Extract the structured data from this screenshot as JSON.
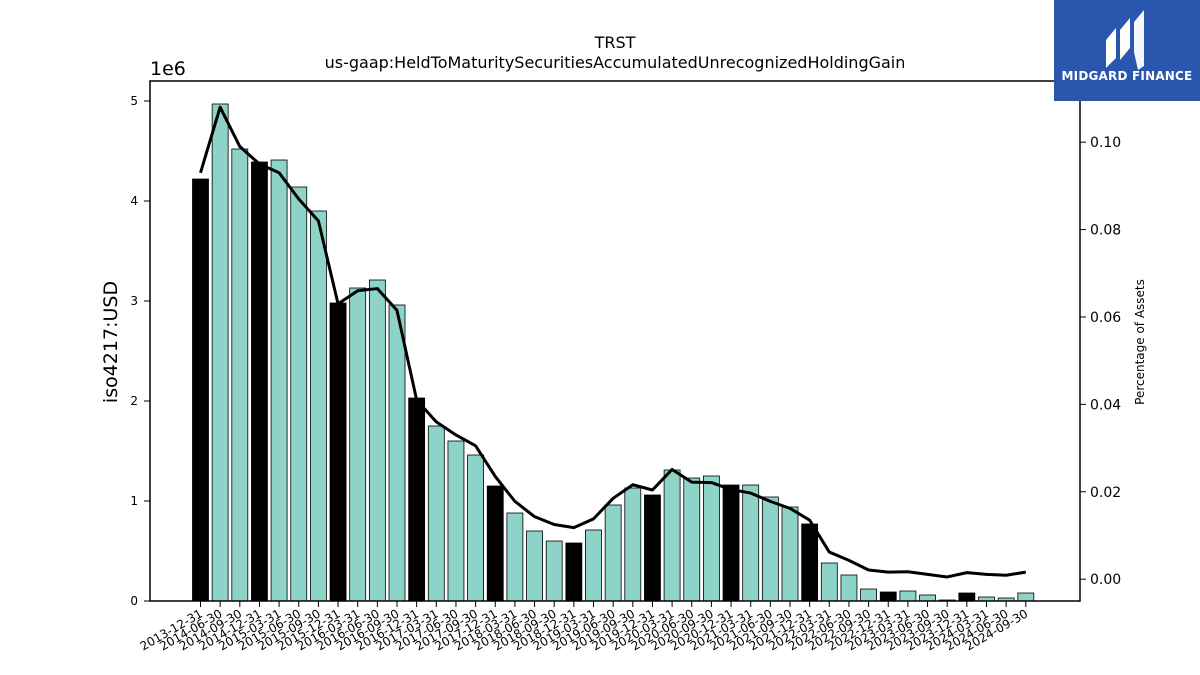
{
  "chart_data": {
    "type": "bar",
    "title": "TRST",
    "subtitle": "us-gaap:HeldToMaturitySecuritiesAccumulatedUnrecognizedHoldingGain",
    "ylabel": "iso4217:USD",
    "y_scale_label": "1e6",
    "y2label": "Percentage of Assets",
    "ylim": [
      0,
      5.2
    ],
    "y2lim": [
      -0.005,
      0.114
    ],
    "yticks": [
      "0",
      "1",
      "2",
      "3",
      "4",
      "5"
    ],
    "y2ticks": [
      "0.00",
      "0.02",
      "0.04",
      "0.06",
      "0.08",
      "0.10"
    ],
    "categories": [
      "2013-12-31",
      "2014-06-30",
      "2014-09-30",
      "2014-12-31",
      "2015-03-31",
      "2015-06-30",
      "2015-09-30",
      "2015-12-31",
      "2016-03-31",
      "2016-06-30",
      "2016-09-30",
      "2016-12-31",
      "2017-03-31",
      "2017-06-30",
      "2017-09-30",
      "2017-12-31",
      "2018-03-31",
      "2018-06-30",
      "2018-09-30",
      "2018-12-31",
      "2019-03-31",
      "2019-06-30",
      "2019-09-30",
      "2019-12-31",
      "2020-03-31",
      "2020-06-30",
      "2020-09-30",
      "2020-12-31",
      "2021-03-31",
      "2021-06-30",
      "2021-09-30",
      "2021-12-31",
      "2022-03-31",
      "2022-06-30",
      "2022-09-30",
      "2022-12-31",
      "2023-03-31",
      "2023-06-30",
      "2023-09-30",
      "2023-12-31",
      "2024-03-31",
      "2024-06-30",
      "2024-09-30"
    ],
    "series": [
      {
        "type": "bar",
        "values": [
          4.22,
          4.97,
          4.52,
          4.39,
          4.41,
          4.14,
          3.9,
          2.98,
          3.13,
          3.21,
          2.96,
          2.03,
          1.75,
          1.6,
          1.46,
          1.15,
          0.88,
          0.7,
          0.6,
          0.58,
          0.71,
          0.96,
          1.13,
          1.06,
          1.31,
          1.23,
          1.25,
          1.16,
          1.16,
          1.04,
          0.94,
          0.77,
          0.38,
          0.26,
          0.12,
          0.09,
          0.1,
          0.06,
          0.01,
          0.08,
          0.04,
          0.03,
          0.08
        ],
        "colors": [
          "#000000",
          "#8dd3c7",
          "#8dd3c7",
          "#000000",
          "#8dd3c7",
          "#8dd3c7",
          "#8dd3c7",
          "#000000",
          "#8dd3c7",
          "#8dd3c7",
          "#8dd3c7",
          "#000000",
          "#8dd3c7",
          "#8dd3c7",
          "#8dd3c7",
          "#000000",
          "#8dd3c7",
          "#8dd3c7",
          "#8dd3c7",
          "#000000",
          "#8dd3c7",
          "#8dd3c7",
          "#8dd3c7",
          "#000000",
          "#8dd3c7",
          "#8dd3c7",
          "#8dd3c7",
          "#000000",
          "#8dd3c7",
          "#8dd3c7",
          "#8dd3c7",
          "#000000",
          "#8dd3c7",
          "#8dd3c7",
          "#8dd3c7",
          "#000000",
          "#8dd3c7",
          "#8dd3c7",
          "#8dd3c7",
          "#000000",
          "#8dd3c7",
          "#8dd3c7",
          "#8dd3c7"
        ]
      },
      {
        "type": "line",
        "axis": "right",
        "color": "#000000",
        "values": [
          0.093,
          0.108,
          0.099,
          0.095,
          0.093,
          0.087,
          0.082,
          0.063,
          0.066,
          0.0665,
          0.0615,
          0.041,
          0.036,
          0.033,
          0.0305,
          0.0235,
          0.0178,
          0.0143,
          0.0125,
          0.0118,
          0.0138,
          0.0185,
          0.0216,
          0.0204,
          0.0251,
          0.0222,
          0.0221,
          0.0205,
          0.0197,
          0.0178,
          0.0162,
          0.0135,
          0.0062,
          0.0043,
          0.0021,
          0.0016,
          0.0017,
          0.0011,
          0.0005,
          0.0015,
          0.0011,
          0.0009,
          0.0016
        ]
      }
    ]
  },
  "brand": {
    "name": "MIDGARD FINANCE",
    "background": "#2a57ad",
    "icon": "midgard-logo-icon"
  }
}
